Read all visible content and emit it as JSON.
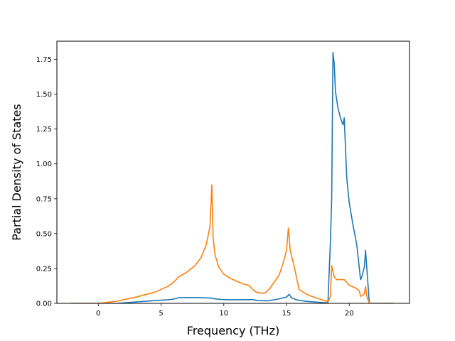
{
  "chart_data": {
    "type": "line",
    "title": "",
    "xlabel": "Frequency (THz)",
    "ylabel": "Partial Density of States",
    "xlim": [
      -3.3,
      24.8
    ],
    "ylim": [
      0,
      1.88
    ],
    "xticks": [
      0,
      5,
      10,
      15,
      20
    ],
    "xtick_labels": [
      "0",
      "5",
      "10",
      "15",
      "20"
    ],
    "yticks": [
      0,
      0.25,
      0.5,
      0.75,
      1.0,
      1.25,
      1.5,
      1.75
    ],
    "ytick_labels": [
      "0.00",
      "0.25",
      "0.50",
      "0.75",
      "1.00",
      "1.25",
      "1.50",
      "1.75"
    ],
    "grid": false,
    "series": [
      {
        "color": "#1f77b4",
        "x": [
          -2.2,
          0.0,
          1.5,
          3.0,
          4.5,
          5.5,
          6.0,
          6.4,
          7.0,
          8.0,
          9.0,
          9.3,
          9.8,
          10.5,
          11.5,
          12.3,
          12.7,
          13.5,
          14.3,
          15.0,
          15.2,
          15.4,
          15.8,
          16.5,
          17.5,
          18.3,
          18.5,
          18.6,
          18.7,
          18.8,
          18.9,
          19.1,
          19.3,
          19.5,
          19.6,
          19.8,
          20.0,
          20.3,
          20.6,
          20.9,
          21.0,
          21.2,
          21.3,
          21.4,
          21.6,
          23.5
        ],
        "y": [
          0.0,
          0.0,
          0.0,
          0.01,
          0.02,
          0.025,
          0.03,
          0.04,
          0.042,
          0.041,
          0.038,
          0.032,
          0.028,
          0.026,
          0.026,
          0.027,
          0.02,
          0.018,
          0.03,
          0.045,
          0.065,
          0.04,
          0.025,
          0.015,
          0.008,
          0.003,
          0.45,
          0.75,
          1.8,
          1.72,
          1.52,
          1.4,
          1.33,
          1.28,
          1.33,
          0.9,
          0.72,
          0.56,
          0.42,
          0.17,
          0.19,
          0.26,
          0.38,
          0.25,
          0.0,
          0.0
        ]
      },
      {
        "color": "#ff7f0e",
        "x": [
          -2.2,
          0.0,
          0.5,
          1.5,
          3.0,
          4.5,
          5.5,
          6.0,
          6.4,
          7.0,
          7.7,
          8.2,
          8.6,
          8.9,
          9.05,
          9.15,
          9.3,
          9.6,
          10.0,
          10.5,
          11.0,
          11.5,
          12.0,
          12.3,
          12.6,
          13.0,
          13.3,
          13.7,
          14.0,
          14.4,
          14.7,
          15.0,
          15.15,
          15.3,
          15.6,
          16.0,
          16.5,
          17.0,
          17.5,
          18.0,
          18.3,
          18.5,
          18.6,
          18.8,
          19.0,
          19.3,
          19.6,
          20.0,
          20.5,
          20.8,
          20.9,
          21.1,
          21.2,
          21.3,
          21.4,
          21.6,
          23.5
        ],
        "y": [
          0.0,
          0.0,
          0.004,
          0.016,
          0.045,
          0.08,
          0.12,
          0.15,
          0.19,
          0.22,
          0.27,
          0.33,
          0.42,
          0.55,
          0.85,
          0.47,
          0.35,
          0.26,
          0.21,
          0.18,
          0.16,
          0.14,
          0.13,
          0.1,
          0.08,
          0.073,
          0.075,
          0.11,
          0.15,
          0.2,
          0.28,
          0.38,
          0.54,
          0.38,
          0.27,
          0.1,
          0.07,
          0.05,
          0.035,
          0.02,
          0.01,
          0.05,
          0.27,
          0.19,
          0.17,
          0.17,
          0.17,
          0.13,
          0.11,
          0.09,
          0.05,
          0.06,
          0.07,
          0.12,
          0.05,
          0.0,
          0.0
        ]
      }
    ]
  }
}
